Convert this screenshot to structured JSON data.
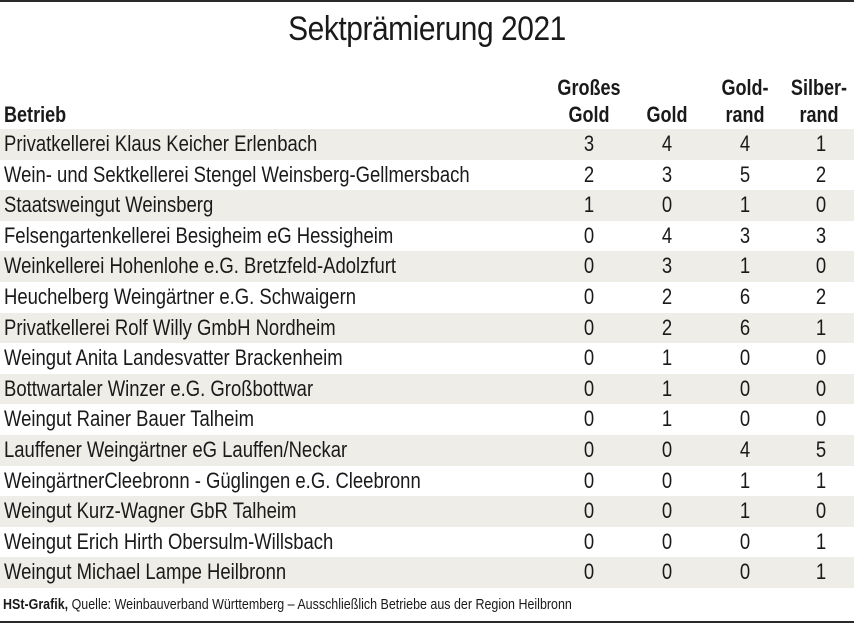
{
  "title": "Sektprämierung 2021",
  "columns": {
    "name": "Betrieb",
    "grosses_gold": [
      "Großes",
      "Gold"
    ],
    "gold": [
      "",
      "Gold"
    ],
    "goldrand": [
      "Gold-",
      "rand"
    ],
    "silberrand": [
      "Silber-",
      "rand"
    ]
  },
  "rows": [
    {
      "name": "Privatkellerei Klaus Keicher Erlenbach",
      "values": [
        3,
        4,
        4,
        1
      ]
    },
    {
      "name": "Wein- und Sektkellerei Stengel Weinsberg-Gellmersbach",
      "values": [
        2,
        3,
        5,
        2
      ]
    },
    {
      "name": "Staatsweingut Weinsberg",
      "values": [
        1,
        0,
        1,
        0
      ]
    },
    {
      "name": "Felsengartenkellerei Besigheim eG Hessigheim",
      "values": [
        0,
        4,
        3,
        3
      ]
    },
    {
      "name": "Weinkellerei Hohenlohe e.G. Bretzfeld-Adolzfurt",
      "values": [
        0,
        3,
        1,
        0
      ]
    },
    {
      "name": "Heuchelberg Weingärtner e.G. Schwaigern",
      "values": [
        0,
        2,
        6,
        2
      ]
    },
    {
      "name": "Privatkellerei Rolf Willy GmbH Nordheim",
      "values": [
        0,
        2,
        6,
        1
      ]
    },
    {
      "name": "Weingut Anita Landesvatter Brackenheim",
      "values": [
        0,
        1,
        0,
        0
      ]
    },
    {
      "name": "Bottwartaler Winzer e.G. Großbottwar",
      "values": [
        0,
        1,
        0,
        0
      ]
    },
    {
      "name": "Weingut Rainer Bauer Talheim",
      "values": [
        0,
        1,
        0,
        0
      ]
    },
    {
      "name": "Lauffener Weingärtner eG Lauffen/Neckar",
      "values": [
        0,
        0,
        4,
        5
      ]
    },
    {
      "name": "WeingärtnerCleebronn - Güglingen e.G. Cleebronn",
      "values": [
        0,
        0,
        1,
        1
      ]
    },
    {
      "name": "Weingut Kurz-Wagner GbR Talheim",
      "values": [
        0,
        0,
        1,
        0
      ]
    },
    {
      "name": "Weingut Erich Hirth Obersulm-Willsbach",
      "values": [
        0,
        0,
        0,
        1
      ]
    },
    {
      "name": "Weingut Michael Lampe Heilbronn",
      "values": [
        0,
        0,
        0,
        1
      ]
    }
  ],
  "footer": {
    "credit": "HSt-Grafik,",
    "source": " Quelle: Weinbauverband Württemberg – Ausschließlich Betriebe aus der Region Heilbronn"
  },
  "colors": {
    "row_shade": "#eeede8",
    "text": "#1a1a1a",
    "rule": "#2a2a2a"
  },
  "chart_data": {
    "type": "table",
    "title": "Sektprämierung 2021",
    "columns": [
      "Betrieb",
      "Großes Gold",
      "Gold",
      "Goldrand",
      "Silberrand"
    ],
    "rows": [
      [
        "Privatkellerei Klaus Keicher Erlenbach",
        3,
        4,
        4,
        1
      ],
      [
        "Wein- und Sektkellerei Stengel Weinsberg-Gellmersbach",
        2,
        3,
        5,
        2
      ],
      [
        "Staatsweingut Weinsberg",
        1,
        0,
        1,
        0
      ],
      [
        "Felsengartenkellerei Besigheim eG Hessigheim",
        0,
        4,
        3,
        3
      ],
      [
        "Weinkellerei Hohenlohe e.G. Bretzfeld-Adolzfurt",
        0,
        3,
        1,
        0
      ],
      [
        "Heuchelberg Weingärtner e.G. Schwaigern",
        0,
        2,
        6,
        2
      ],
      [
        "Privatkellerei Rolf Willy GmbH Nordheim",
        0,
        2,
        6,
        1
      ],
      [
        "Weingut Anita Landesvatter Brackenheim",
        0,
        1,
        0,
        0
      ],
      [
        "Bottwartaler Winzer e.G. Großbottwar",
        0,
        1,
        0,
        0
      ],
      [
        "Weingut Rainer Bauer Talheim",
        0,
        1,
        0,
        0
      ],
      [
        "Lauffener Weingärtner eG Lauffen/Neckar",
        0,
        0,
        4,
        5
      ],
      [
        "WeingärtnerCleebronn - Güglingen e.G. Cleebronn",
        0,
        0,
        1,
        1
      ],
      [
        "Weingut Kurz-Wagner GbR Talheim",
        0,
        0,
        1,
        0
      ],
      [
        "Weingut Erich Hirth Obersulm-Willsbach",
        0,
        0,
        0,
        1
      ],
      [
        "Weingut Michael Lampe Heilbronn",
        0,
        0,
        0,
        1
      ]
    ],
    "source": "HSt-Grafik, Quelle: Weinbauverband Württemberg – Ausschließlich Betriebe aus der Region Heilbronn"
  }
}
